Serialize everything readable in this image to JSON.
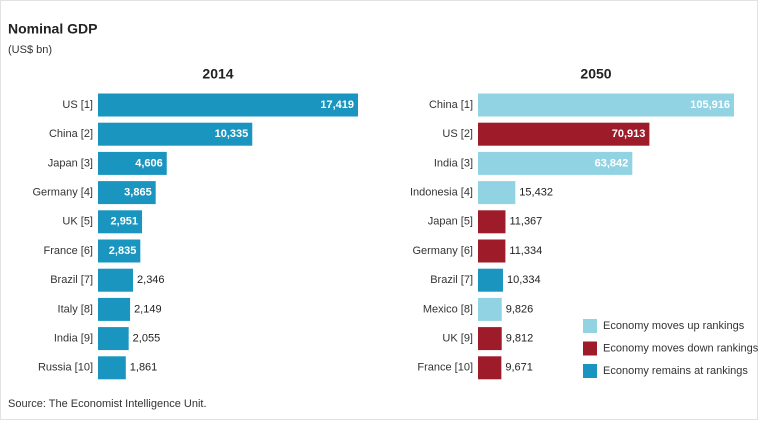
{
  "title": "Nominal GDP",
  "subtitle": "(US$ bn)",
  "source": "Source: The Economist Intelligence Unit.",
  "chart_data": [
    {
      "type": "hbar",
      "title": "2014",
      "categories": [
        "US [1]",
        "China [2]",
        "Japan [3]",
        "Germany [4]",
        "UK [5]",
        "France [6]",
        "Brazil [7]",
        "Italy [8]",
        "India [9]",
        "Russia [10]"
      ],
      "values": [
        17419,
        10335,
        4606,
        3865,
        2951,
        2835,
        2346,
        2149,
        2055,
        1861
      ],
      "value_labels": [
        "17,419",
        "10,335",
        "4,606",
        "3,865",
        "2,951",
        "2,835",
        "2,346",
        "2,149",
        "2,055",
        "1,861"
      ],
      "colors": [
        "#1a95bf",
        "#1a95bf",
        "#1a95bf",
        "#1a95bf",
        "#1a95bf",
        "#1a95bf",
        "#1a95bf",
        "#1a95bf",
        "#1a95bf",
        "#1a95bf"
      ]
    },
    {
      "type": "hbar",
      "title": "2050",
      "categories": [
        "China [1]",
        "US [2]",
        "India [3]",
        "Indonesia [4]",
        "Japan [5]",
        "Germany [6]",
        "Brazil [7]",
        "Mexico [8]",
        "UK [9]",
        "France [10]"
      ],
      "values": [
        105916,
        70913,
        63842,
        15432,
        11367,
        11334,
        10334,
        9826,
        9812,
        9671
      ],
      "value_labels": [
        "105,916",
        "70,913",
        "63,842",
        "15,432",
        "11,367",
        "11,334",
        "10,334",
        "9,826",
        "9,812",
        "9,671"
      ],
      "colors": [
        "#92d3e3",
        "#9e1c2a",
        "#92d3e3",
        "#92d3e3",
        "#9e1c2a",
        "#9e1c2a",
        "#1a95bf",
        "#92d3e3",
        "#9e1c2a",
        "#9e1c2a"
      ],
      "legend": [
        {
          "name": "Economy moves up rankings",
          "color": "#92d3e3"
        },
        {
          "name": "Economy moves down rankings",
          "color": "#9e1c2a"
        },
        {
          "name": "Economy remains at rankings",
          "color": "#1a95bf"
        }
      ]
    }
  ]
}
